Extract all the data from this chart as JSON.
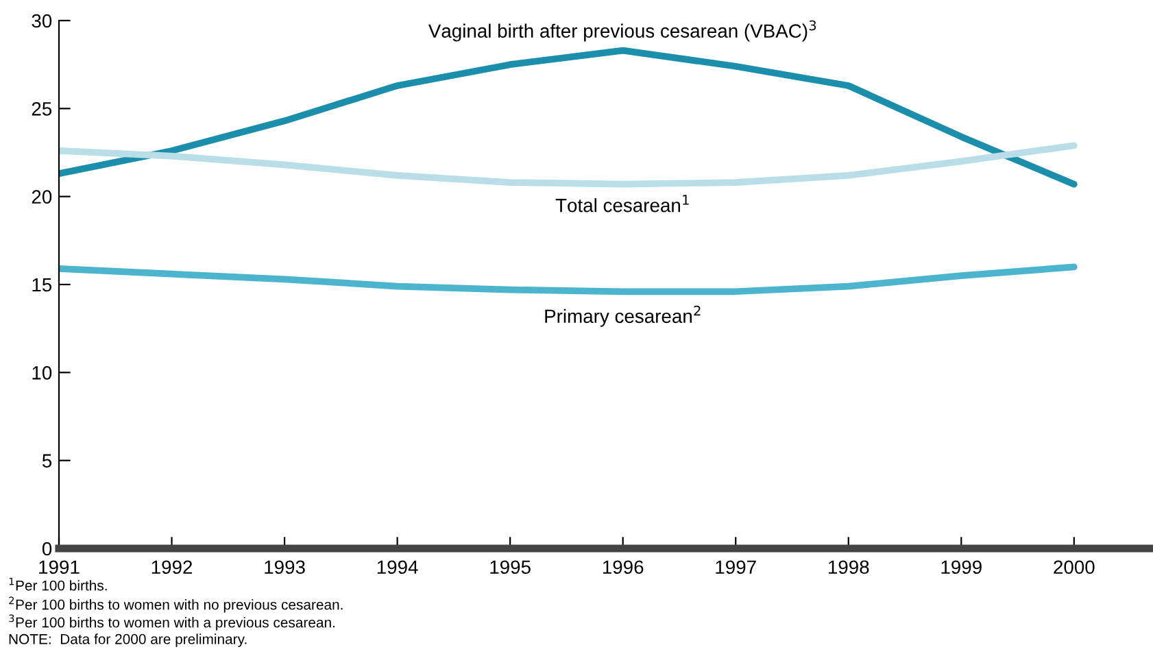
{
  "chart_data": {
    "type": "line",
    "x": [
      1991,
      1992,
      1993,
      1994,
      1995,
      1996,
      1997,
      1998,
      1999,
      2000
    ],
    "series": [
      {
        "name": "Vaginal birth after previous cesarean (VBAC)$^{3}$",
        "color": "#1b8eab",
        "values": [
          21.3,
          22.6,
          24.3,
          26.3,
          27.5,
          28.3,
          27.4,
          26.3,
          23.4,
          20.7
        ]
      },
      {
        "name": "Total cesarean$^{1}$",
        "color": "#b9dee7",
        "values": [
          22.6,
          22.3,
          21.8,
          21.2,
          20.8,
          20.7,
          20.8,
          21.2,
          22.0,
          22.9
        ]
      },
      {
        "name": "Primary cesarean$^{2}$",
        "color": "#4cb4cc",
        "values": [
          15.9,
          15.6,
          15.3,
          14.9,
          14.7,
          14.6,
          14.6,
          14.9,
          15.5,
          16.0
        ]
      }
    ],
    "xlim": [
      1991,
      2000.7
    ],
    "xticks": [
      1991,
      1992,
      1993,
      1994,
      1995,
      1996,
      1997,
      1998,
      1999,
      2000
    ],
    "ylim": [
      0,
      30
    ],
    "yticks": [
      0,
      5,
      10,
      15,
      20,
      25,
      30
    ],
    "grid": false,
    "legend": false,
    "marker": "none",
    "line_style": "solid",
    "annotations": [
      "$^{1}$Per 100 births.",
      "$^{2}$Per 100 births to women with no previous cesarean.",
      "$^{3}$Per 100 births to women with a previous cesarean.",
      "NOTE:  Data for 2000 are preliminary."
    ]
  }
}
